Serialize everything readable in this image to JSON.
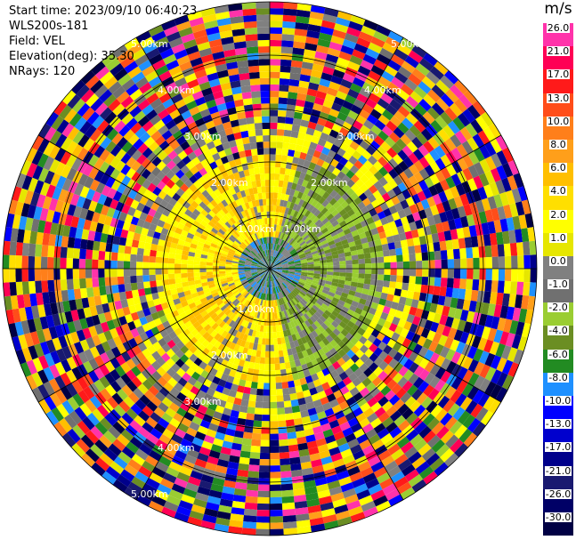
{
  "info": {
    "start_time": "Start time: 2023/09/10 06:40:23",
    "station": "WLS200s-181",
    "field": "Field: VEL",
    "elevation": "Elevation(deg): 35.30",
    "nrays": "NRays: 120"
  },
  "colorbar": {
    "unit": "m/s",
    "levels": [
      "26.0",
      "21.0",
      "17.0",
      "13.0",
      "10.0",
      "8.0",
      "6.0",
      "4.0",
      "2.0",
      "1.0",
      "0.0",
      "-1.0",
      "-2.0",
      "-4.0",
      "-6.0",
      "-8.0",
      "-10.0",
      "-13.0",
      "-17.0",
      "-21.0",
      "-26.0",
      "-30.0"
    ],
    "colors": [
      "#ff33aa",
      "#ff0055",
      "#ff1a1a",
      "#ff4d1a",
      "#ff7f1a",
      "#ff9f1a",
      "#ffbf00",
      "#ffdf00",
      "#ffff00",
      "#e6e600",
      "#808080",
      "#707070",
      "#9acd32",
      "#6b8e23",
      "#228b22",
      "#1e90ff",
      "#0000ff",
      "#0000cd",
      "#00008b",
      "#191970",
      "#000066",
      "#000044"
    ]
  },
  "range_rings": [
    "1.00km",
    "2.00km",
    "3.00km",
    "4.00km",
    "5.00km",
    "1.00km",
    "2.00km",
    "3.00km",
    "4.00km",
    "5.00km",
    "1.00km",
    "2.00km",
    "3.00km",
    "4.00km",
    "5.00km"
  ]
}
